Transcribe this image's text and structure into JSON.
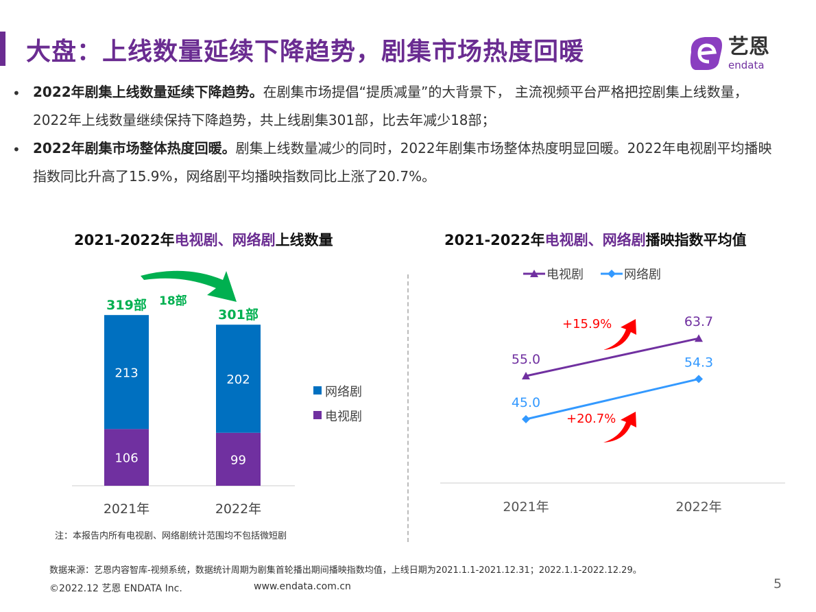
{
  "header": {
    "title": "大盘：上线数量延续下降趋势，剧集市场热度回暖",
    "logo_text": "艺恩",
    "logo_sub": "endata"
  },
  "bullets": [
    {
      "bold": "2022年剧集上线数量延续下降趋势。",
      "text": "在剧集市场提倡“提质减量”的大背景下， 主流视频平台严格把控剧集上线数量，2022年上线数量继续保持下降趋势，共上线剧集301部，比去年减少18部；"
    },
    {
      "bold": "2022年剧集市场整体热度回暖。",
      "text": "剧集上线数量减少的同时，2022年剧集市场整体热度明显回暖。2022年电视剧平均播映指数同比升高了15.9%，网络剧平均播映指数同比上涨了20.7%。"
    }
  ],
  "colors": {
    "tv": "#7030a0",
    "web": "#0070c0",
    "web_line": "#3399ff",
    "accent": "#6a2c91",
    "total": "#00b050",
    "change": "#ff0000"
  },
  "chart_data": [
    {
      "type": "bar",
      "stacked": true,
      "title_parts": [
        "2021-2022年",
        "电视剧",
        "、",
        "网络剧",
        "上线数量"
      ],
      "categories": [
        "2021年",
        "2022年"
      ],
      "series": [
        {
          "name": "电视剧",
          "values": [
            106,
            99
          ]
        },
        {
          "name": "网络剧",
          "values": [
            213,
            202
          ]
        }
      ],
      "totals": [
        "319部",
        "301部"
      ],
      "annotation": "18部",
      "legend": [
        "网络剧",
        "电视剧"
      ],
      "legend_position": "right",
      "note": "注：本报告内所有电视剧、网络剧统计范围均不包括微短剧"
    },
    {
      "type": "line",
      "title_parts": [
        "2021-2022年",
        "电视剧",
        "、",
        "网络剧",
        "播映指数平均值"
      ],
      "categories": [
        "2021年",
        "2022年"
      ],
      "series": [
        {
          "name": "电视剧",
          "values": [
            55.0,
            63.7
          ]
        },
        {
          "name": "网络剧",
          "values": [
            45.0,
            54.3
          ]
        }
      ],
      "labels": [
        [
          "55.0",
          "63.7"
        ],
        [
          "45.0",
          "54.3"
        ]
      ],
      "annotations": [
        "+15.9%",
        "+20.7%"
      ],
      "legend_position": "top"
    }
  ],
  "footer": {
    "source": "数据来源：艺恩内容智库-视频系统，数据统计周期为剧集首轮播出期间播映指数均值，上线日期为2021.1.1-2021.12.31；2022.1.1-2022.12.29。",
    "copyright": "©2022.12 艺恩 ENDATA Inc.",
    "website": "www.endata.com.cn",
    "page": "5"
  }
}
